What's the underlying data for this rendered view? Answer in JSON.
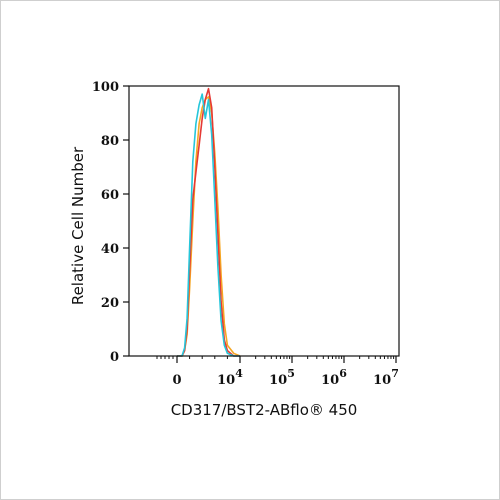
{
  "chart_data": {
    "type": "line",
    "xlabel": "CD317/BST2-ABflo® 450",
    "ylabel": "Relative Cell Number",
    "x_scale": "biexponential",
    "xlim": [
      -1000,
      10000000
    ],
    "ylim": [
      0,
      100
    ],
    "grid": false,
    "yticks": [
      {
        "value": 0,
        "label": "0"
      },
      {
        "value": 20,
        "label": "20"
      },
      {
        "value": 40,
        "label": "40"
      },
      {
        "value": 60,
        "label": "60"
      },
      {
        "value": 80,
        "label": "80"
      },
      {
        "value": 100,
        "label": "100"
      }
    ],
    "xticks": [
      {
        "value": 0,
        "base": "0",
        "exp": ""
      },
      {
        "value": 10000,
        "base": "10",
        "exp": "4"
      },
      {
        "value": 100000,
        "base": "10",
        "exp": "5"
      },
      {
        "value": 1000000,
        "base": "10",
        "exp": "6"
      },
      {
        "value": 10000000,
        "base": "10",
        "exp": "7"
      }
    ],
    "series": [
      {
        "color": "#f5a623",
        "x": [
          0,
          800,
          1200,
          1600,
          2000,
          2500,
          3000,
          3500,
          4000,
          4500,
          5000,
          5500,
          6000,
          6500,
          7000,
          7500,
          8000,
          9000,
          10000
        ],
        "y": [
          0,
          0,
          2,
          8,
          25,
          50,
          72,
          86,
          92,
          95,
          96,
          90,
          75,
          55,
          30,
          12,
          4,
          1,
          0
        ]
      },
      {
        "color": "#e53935",
        "x": [
          0,
          800,
          1200,
          1600,
          2000,
          2500,
          3000,
          3500,
          4000,
          4500,
          5000,
          5500,
          6000,
          6500,
          7000,
          7500,
          8000,
          9000,
          10000
        ],
        "y": [
          0,
          0,
          2,
          10,
          32,
          58,
          68,
          78,
          88,
          95,
          99,
          92,
          70,
          45,
          20,
          6,
          2,
          0,
          0
        ]
      },
      {
        "color": "#26c6da",
        "x": [
          0,
          800,
          1200,
          1600,
          2000,
          2500,
          3000,
          3500,
          4000,
          4500,
          5000,
          5500,
          6000,
          6500,
          7000,
          7500,
          8000,
          9000,
          10000
        ],
        "y": [
          0,
          0,
          3,
          14,
          40,
          72,
          86,
          93,
          97,
          88,
          95,
          82,
          58,
          33,
          13,
          4,
          1,
          0,
          0
        ]
      }
    ]
  }
}
